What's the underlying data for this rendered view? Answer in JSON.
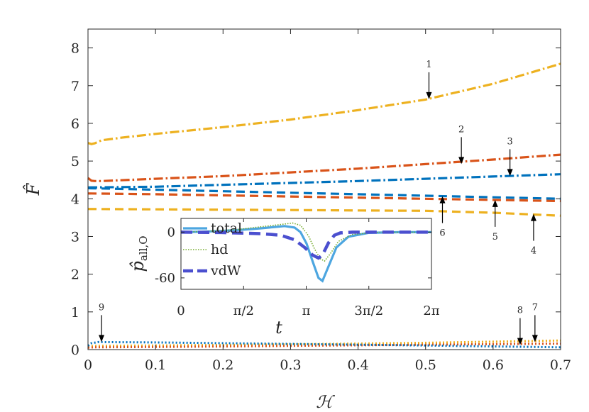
{
  "chart_data": [
    {
      "type": "line",
      "xlabel": "ℋ",
      "ylabel": "F̂",
      "xlim": [
        0,
        0.7
      ],
      "ylim": [
        0,
        8.5
      ],
      "xticks": [
        0,
        0.1,
        0.2,
        0.3,
        0.4,
        0.5,
        0.6,
        0.7
      ],
      "xtick_labels": [
        "0",
        "0.1",
        "0.2",
        "0.3",
        "0.4",
        "0.5",
        "0.6",
        "0.7"
      ],
      "yticks": [
        0,
        1,
        2,
        3,
        4,
        5,
        6,
        7,
        8
      ],
      "ytick_labels": [
        "0",
        "1",
        "2",
        "3",
        "4",
        "5",
        "6",
        "7",
        "8"
      ],
      "colors": {
        "blue": "#0072bd",
        "orange": "#d95319",
        "yellow": "#edb120",
        "axis": "#262626"
      },
      "series": [
        {
          "name": "1",
          "color": "#edb120",
          "style": "dashdot",
          "x": [
            0,
            0.005,
            0.01,
            0.02,
            0.05,
            0.1,
            0.2,
            0.3,
            0.4,
            0.5,
            0.6,
            0.7
          ],
          "y": [
            5.48,
            5.45,
            5.47,
            5.55,
            5.62,
            5.72,
            5.9,
            6.1,
            6.35,
            6.63,
            7.05,
            7.58
          ]
        },
        {
          "name": "2",
          "color": "#d95319",
          "style": "dashdot",
          "x": [
            0,
            0.005,
            0.01,
            0.02,
            0.1,
            0.2,
            0.3,
            0.4,
            0.5,
            0.6,
            0.7
          ],
          "y": [
            4.55,
            4.48,
            4.47,
            4.47,
            4.53,
            4.6,
            4.7,
            4.8,
            4.92,
            5.04,
            5.17
          ]
        },
        {
          "name": "3",
          "color": "#0072bd",
          "style": "dashdot",
          "x": [
            0,
            0.1,
            0.2,
            0.3,
            0.4,
            0.5,
            0.6,
            0.7
          ],
          "y": [
            4.3,
            4.32,
            4.37,
            4.42,
            4.47,
            4.53,
            4.59,
            4.65
          ]
        },
        {
          "name": "4",
          "color": "#edb120",
          "style": "dashed",
          "x": [
            0,
            0.1,
            0.2,
            0.3,
            0.4,
            0.5,
            0.6,
            0.7
          ],
          "y": [
            3.73,
            3.72,
            3.71,
            3.7,
            3.69,
            3.68,
            3.63,
            3.55
          ]
        },
        {
          "name": "5",
          "color": "#d95319",
          "style": "dashed",
          "x": [
            0,
            0.1,
            0.2,
            0.3,
            0.4,
            0.5,
            0.6,
            0.7
          ],
          "y": [
            4.14,
            4.12,
            4.09,
            4.06,
            4.03,
            4.0,
            3.97,
            3.94
          ]
        },
        {
          "name": "6",
          "color": "#0072bd",
          "style": "dashed",
          "x": [
            0,
            0.1,
            0.2,
            0.3,
            0.4,
            0.5,
            0.6,
            0.7
          ],
          "y": [
            4.28,
            4.24,
            4.2,
            4.16,
            4.12,
            4.08,
            4.04,
            4.0
          ]
        },
        {
          "name": "7",
          "color": "#edb120",
          "style": "dotted",
          "x": [
            0,
            0.01,
            0.1,
            0.3,
            0.5,
            0.7
          ],
          "y": [
            0.09,
            0.1,
            0.11,
            0.14,
            0.18,
            0.24
          ]
        },
        {
          "name": "8",
          "color": "#d95319",
          "style": "dotted",
          "x": [
            0,
            0.01,
            0.1,
            0.3,
            0.5,
            0.7
          ],
          "y": [
            0.05,
            0.06,
            0.07,
            0.1,
            0.13,
            0.16
          ]
        },
        {
          "name": "9",
          "color": "#0072bd",
          "style": "dotted",
          "x": [
            0,
            0.005,
            0.015,
            0.1,
            0.3,
            0.5,
            0.7
          ],
          "y": [
            0.1,
            0.17,
            0.2,
            0.19,
            0.15,
            0.11,
            0.06
          ]
        }
      ],
      "annotations": [
        {
          "label": "1",
          "x": 0.505,
          "y": 6.64,
          "dir": "down"
        },
        {
          "label": "2",
          "x": 0.553,
          "y": 4.92,
          "dir": "down"
        },
        {
          "label": "3",
          "x": 0.625,
          "y": 4.6,
          "dir": "down"
        },
        {
          "label": "4",
          "x": 0.66,
          "y": 3.6,
          "dir": "up"
        },
        {
          "label": "5",
          "x": 0.603,
          "y": 3.97,
          "dir": "up"
        },
        {
          "label": "6",
          "x": 0.525,
          "y": 4.07,
          "dir": "up"
        },
        {
          "label": "7",
          "x": 0.662,
          "y": 0.2,
          "dir": "down"
        },
        {
          "label": "8",
          "x": 0.64,
          "y": 0.12,
          "dir": "down"
        },
        {
          "label": "9",
          "x": 0.02,
          "y": 0.2,
          "dir": "down"
        }
      ]
    },
    {
      "type": "line",
      "xlabel": "t",
      "ylabel": "p̂all,O",
      "ylabel_main": "p̂",
      "ylabel_sub": "all,O",
      "xlim": [
        0,
        6.2832
      ],
      "ylim": [
        -75,
        18
      ],
      "xticks": [
        0,
        1.5708,
        3.1416,
        4.7124,
        6.2832
      ],
      "xtick_labels": [
        "0",
        "π/2",
        "π",
        "3π/2",
        "2π"
      ],
      "yticks": [
        0,
        -60
      ],
      "ytick_labels": [
        "0",
        "-60"
      ],
      "legend": {
        "position": "top-left",
        "entries": [
          "total",
          "hd",
          "vdW"
        ]
      },
      "series": [
        {
          "name": "total",
          "color": "#4da6e0",
          "style": "solid",
          "x": [
            0,
            0.5,
            1.0,
            1.5,
            2.0,
            2.3,
            2.6,
            2.85,
            3.0,
            3.15,
            3.3,
            3.45,
            3.55,
            3.7,
            3.9,
            4.2,
            4.7,
            5.5,
            6.28
          ],
          "y": [
            0,
            0.5,
            1.5,
            3,
            5,
            6.5,
            8,
            6,
            0,
            -15,
            -38,
            -60,
            -64,
            -45,
            -20,
            -6,
            -1,
            0,
            0
          ]
        },
        {
          "name": "hd",
          "color": "#77ac30",
          "style": "dotted",
          "x": [
            0,
            0.5,
            1.0,
            1.5,
            2.0,
            2.5,
            2.8,
            3.0,
            3.2,
            3.35,
            3.5,
            3.6,
            3.75,
            3.95,
            4.3,
            5.0,
            6.28
          ],
          "y": [
            0,
            0.8,
            2,
            4,
            7,
            10,
            12,
            9,
            -5,
            -22,
            -35,
            -38,
            -28,
            -12,
            -3,
            0,
            0
          ]
        },
        {
          "name": "vdW",
          "color": "#4b4fcf",
          "style": "dashed",
          "x": [
            0,
            1.0,
            2.0,
            2.5,
            2.85,
            3.1,
            3.3,
            3.45,
            3.55,
            3.7,
            3.85,
            4.0,
            4.3,
            6.28
          ],
          "y": [
            0,
            -0.5,
            -2,
            -4,
            -10,
            -20,
            -30,
            -34,
            -30,
            -14,
            -4,
            -1,
            0,
            0
          ]
        }
      ]
    }
  ]
}
